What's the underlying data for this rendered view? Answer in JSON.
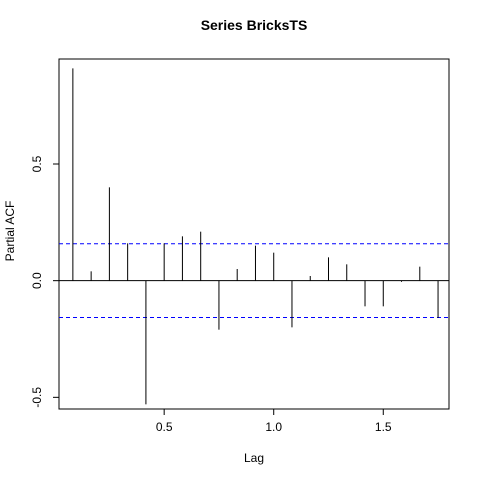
{
  "chart_data": {
    "type": "bar",
    "title": "Series  BricksTS",
    "xlabel": "Lag",
    "ylabel": "Partial ACF",
    "xlim": [
      0.02,
      1.8
    ],
    "ylim": [
      -0.55,
      0.95
    ],
    "xticks": [
      0.5,
      1.0,
      1.5
    ],
    "xtick_labels": [
      "0.5",
      "1.0",
      "1.5"
    ],
    "yticks": [
      -0.5,
      0.0,
      0.5
    ],
    "ytick_labels": [
      "-0.5",
      "0.0",
      "0.5"
    ],
    "confidence_bound": 0.158,
    "colors": {
      "bars": "#000000",
      "bounds": "#0000ff",
      "zero_line": "#000000"
    },
    "lags": [
      0.0833,
      0.1667,
      0.25,
      0.3333,
      0.4167,
      0.5,
      0.5833,
      0.6667,
      0.75,
      0.8333,
      0.9167,
      1.0,
      1.0833,
      1.1667,
      1.25,
      1.3333,
      1.4167,
      1.5,
      1.5833,
      1.6667,
      1.75
    ],
    "values": [
      0.91,
      0.04,
      0.4,
      0.16,
      -0.53,
      0.16,
      0.19,
      0.21,
      -0.21,
      0.05,
      0.15,
      0.12,
      -0.2,
      0.02,
      0.1,
      0.07,
      -0.11,
      -0.11,
      -0.005,
      0.06,
      -0.16
    ]
  }
}
